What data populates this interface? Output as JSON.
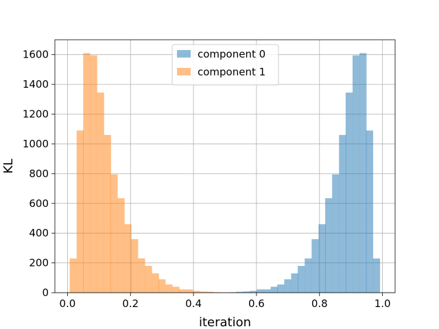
{
  "chart_data": {
    "type": "bar",
    "subtype": "histogram",
    "xlabel": "iteration",
    "ylabel": "KL",
    "xlim": [
      -0.04,
      1.04
    ],
    "ylim": [
      0,
      1700
    ],
    "xticks": [
      0.0,
      0.2,
      0.4,
      0.6,
      0.8,
      1.0
    ],
    "xtick_labels": [
      "0.0",
      "0.2",
      "0.4",
      "0.6",
      "0.8",
      "1.0"
    ],
    "yticks": [
      0,
      200,
      400,
      600,
      800,
      1000,
      1200,
      1400,
      1600
    ],
    "ytick_labels": [
      "0",
      "200",
      "400",
      "600",
      "800",
      "1000",
      "1200",
      "1400",
      "1600"
    ],
    "grid": true,
    "legend_position": "upper center",
    "bin_width": 0.0217,
    "series": [
      {
        "name": "component 0",
        "color": "#1f77b4",
        "alpha": 0.5,
        "bin_start": [
          0.514,
          0.536,
          0.558,
          0.579,
          0.601,
          0.623,
          0.645,
          0.666,
          0.688,
          0.71,
          0.731,
          0.753,
          0.775,
          0.797,
          0.818,
          0.84,
          0.862,
          0.883,
          0.905,
          0.927,
          0.948,
          0.97
        ],
        "values": [
          3,
          6,
          8,
          12,
          22,
          22,
          40,
          55,
          90,
          130,
          180,
          230,
          360,
          460,
          635,
          795,
          1060,
          1345,
          1595,
          1610,
          1090,
          230
        ]
      },
      {
        "name": "component 1",
        "color": "#ff7f0e",
        "alpha": 0.5,
        "bin_start": [
          0.007,
          0.029,
          0.05,
          0.072,
          0.094,
          0.116,
          0.137,
          0.159,
          0.181,
          0.202,
          0.224,
          0.246,
          0.268,
          0.289,
          0.311,
          0.333,
          0.354,
          0.376,
          0.398,
          0.42,
          0.441,
          0.463,
          0.485
        ],
        "values": [
          230,
          1090,
          1610,
          1595,
          1345,
          1060,
          795,
          635,
          460,
          360,
          230,
          180,
          130,
          90,
          55,
          40,
          22,
          22,
          12,
          8,
          6,
          3,
          2
        ]
      }
    ]
  }
}
